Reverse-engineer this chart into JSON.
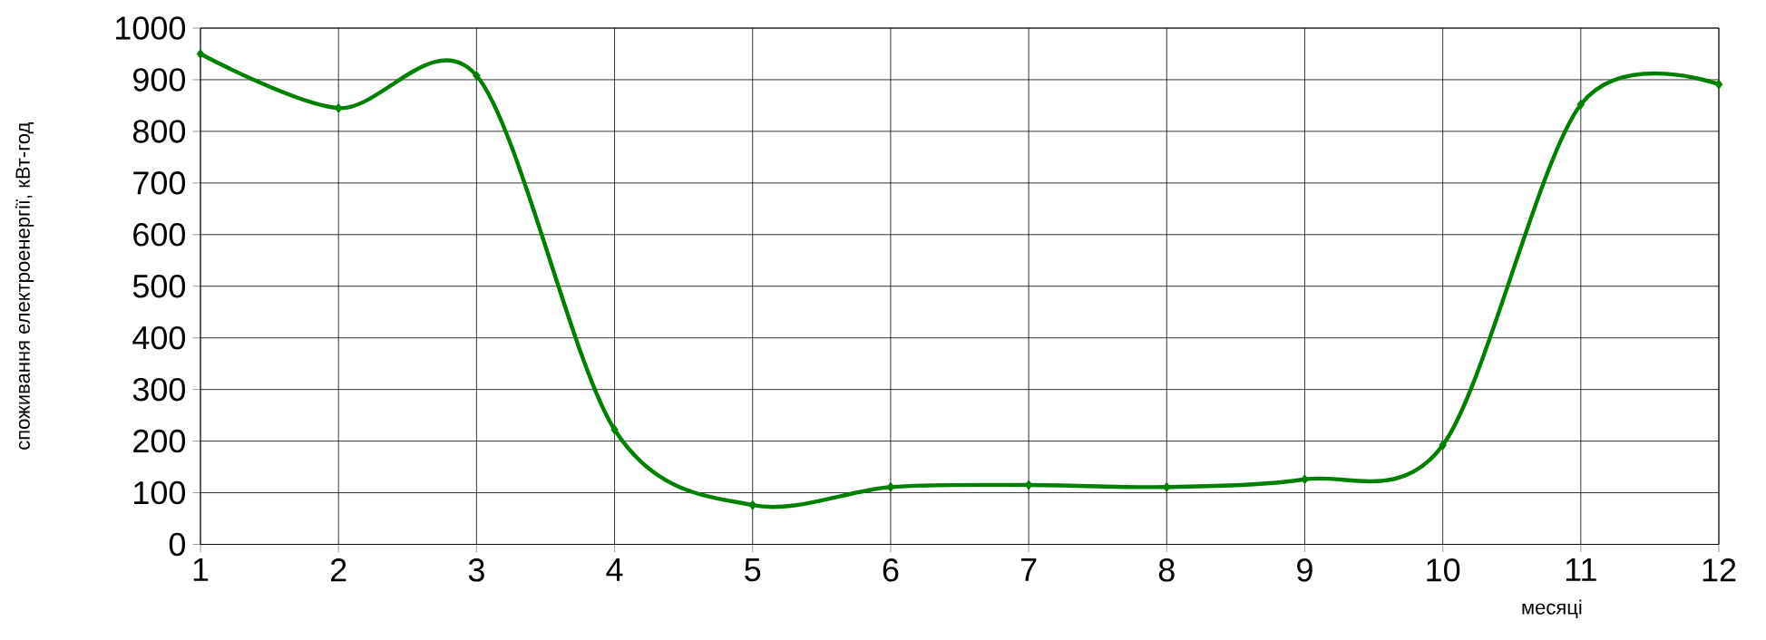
{
  "chart_data": {
    "type": "line",
    "xlabel": "месяці",
    "ylabel": "споживання електроенергії, кВт-год",
    "x": [
      1,
      2,
      3,
      4,
      5,
      6,
      7,
      8,
      9,
      10,
      11,
      12
    ],
    "values": [
      950,
      845,
      908,
      222,
      76,
      111,
      115,
      111,
      126,
      192,
      852,
      891
    ],
    "color": "#008000",
    "marker": "diamond",
    "grid": true,
    "xlim": [
      1,
      12
    ],
    "xticks": [
      1,
      2,
      3,
      4,
      5,
      6,
      7,
      8,
      9,
      10,
      11,
      12
    ],
    "ylim": [
      0,
      1000
    ],
    "yticks": [
      0,
      100,
      200,
      300,
      400,
      500,
      600,
      700,
      800,
      900,
      1000
    ]
  }
}
